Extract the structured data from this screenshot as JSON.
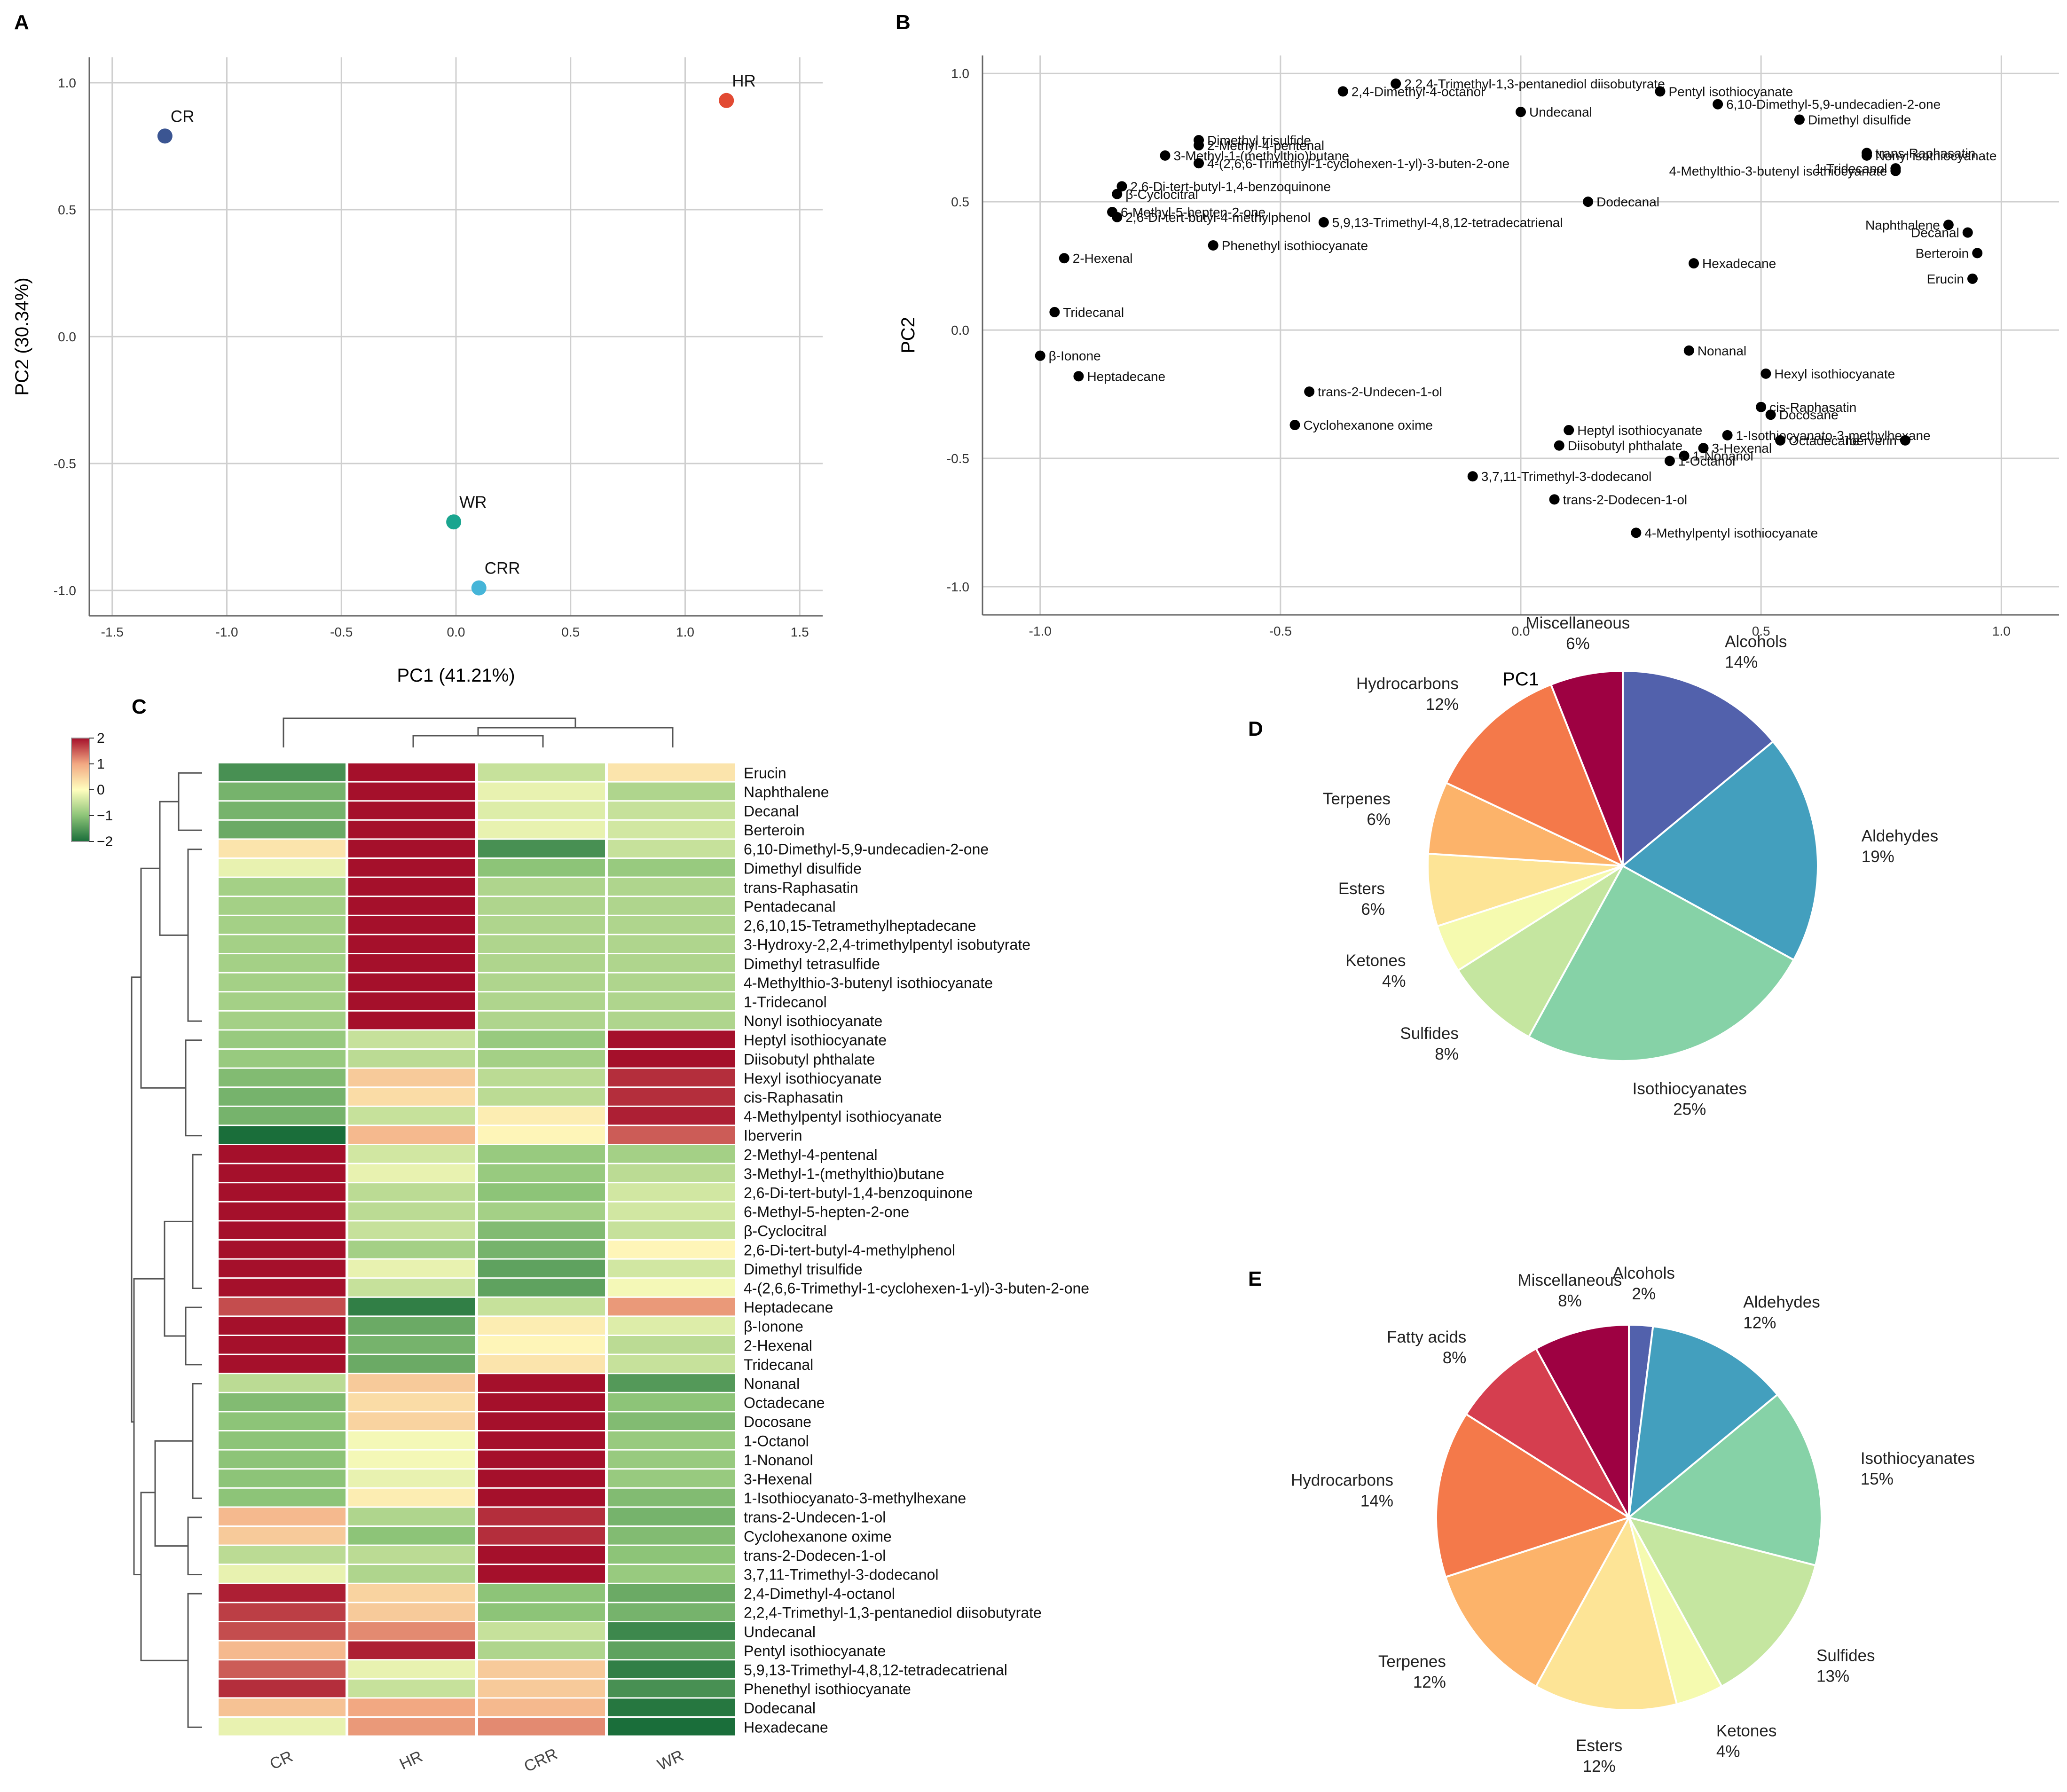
{
  "panels": {
    "A": "A",
    "B": "B",
    "C": "C",
    "D": "D",
    "E": "E"
  },
  "chart_data": [
    {
      "id": "A",
      "type": "scatter",
      "xlabel": "PC1 (41.21%)",
      "ylabel": "PC2 (30.34%)",
      "xlim": [
        -1.6,
        1.6
      ],
      "ylim": [
        -1.1,
        1.1
      ],
      "xticks": [
        -1.5,
        -1.0,
        -0.5,
        0.0,
        0.5,
        1.0,
        1.5
      ],
      "yticks": [
        -1.0,
        -0.5,
        0.0,
        0.5,
        1.0
      ],
      "points": [
        {
          "label": "CR",
          "x": -1.27,
          "y": 0.79,
          "color": "#3b5592"
        },
        {
          "label": "HR",
          "x": 1.18,
          "y": 0.93,
          "color": "#e24a33"
        },
        {
          "label": "WR",
          "x": -0.01,
          "y": -0.73,
          "color": "#1aa58f"
        },
        {
          "label": "CRR",
          "x": 0.1,
          "y": -0.99,
          "color": "#46b5d8"
        }
      ]
    },
    {
      "id": "B",
      "type": "scatter",
      "xlabel": "PC1",
      "ylabel": "PC2",
      "xlim": [
        -1.12,
        1.12
      ],
      "ylim": [
        -1.11,
        1.07
      ],
      "xticks": [
        -1.0,
        -0.5,
        0.0,
        0.5,
        1.0
      ],
      "yticks": [
        -1.0,
        -0.5,
        0.0,
        0.5,
        1.0
      ],
      "points": [
        {
          "label": "2,2,4-Trimethyl-1,3-pentanediol diisobutyrate",
          "x": -0.26,
          "y": 0.96
        },
        {
          "label": "2,4-Dimethyl-4-octanol",
          "x": -0.37,
          "y": 0.93
        },
        {
          "label": "Pentyl isothiocyanate",
          "x": 0.29,
          "y": 0.93
        },
        {
          "label": "6,10-Dimethyl-5,9-undecadien-2-one",
          "x": 0.41,
          "y": 0.88
        },
        {
          "label": "Undecanal",
          "x": 0.0,
          "y": 0.85
        },
        {
          "label": "Dimethyl disulfide",
          "x": 0.58,
          "y": 0.82
        },
        {
          "label": "Dimethyl trisulfide",
          "x": -0.67,
          "y": 0.74
        },
        {
          "label": "2-Methyl-4-pentenal",
          "x": -0.67,
          "y": 0.72
        },
        {
          "label": "3-Methyl-1-(methylthio)butane",
          "x": -0.74,
          "y": 0.68
        },
        {
          "label": "4-(2,6,6-Trimethyl-1-cyclohexen-1-yl)-3-buten-2-one",
          "x": -0.67,
          "y": 0.65
        },
        {
          "label": "trans-Raphasatin",
          "x": 0.72,
          "y": 0.69
        },
        {
          "label": "Nonyl isothiocyanate",
          "x": 0.72,
          "y": 0.68
        },
        {
          "label": "1-Tridecanol",
          "x": 0.78,
          "y": 0.63
        },
        {
          "label": "4-Methylthio-3-butenyl isothiocyanate",
          "x": 0.78,
          "y": 0.62
        },
        {
          "label": "2,6-Di-tert-butyl-1,4-benzoquinone",
          "x": -0.83,
          "y": 0.56
        },
        {
          "label": "β-Cyclocitral",
          "x": -0.84,
          "y": 0.53
        },
        {
          "label": "6-Methyl-5-hepten-2-one",
          "x": -0.85,
          "y": 0.46
        },
        {
          "label": "Dodecanal",
          "x": 0.14,
          "y": 0.5
        },
        {
          "label": "2,6-Di-tert-butyl-4-methylphenol",
          "x": -0.84,
          "y": 0.44
        },
        {
          "label": "5,9,13-Trimethyl-4,8,12-tetradecatrienal",
          "x": -0.41,
          "y": 0.42
        },
        {
          "label": "Naphthalene",
          "x": 0.89,
          "y": 0.41
        },
        {
          "label": "Decanal",
          "x": 0.93,
          "y": 0.38
        },
        {
          "label": "Phenethyl isothiocyanate",
          "x": -0.64,
          "y": 0.33
        },
        {
          "label": "Berteroin",
          "x": 0.95,
          "y": 0.3
        },
        {
          "label": "2-Hexenal",
          "x": -0.95,
          "y": 0.28
        },
        {
          "label": "Hexadecane",
          "x": 0.36,
          "y": 0.26
        },
        {
          "label": "Erucin",
          "x": 0.94,
          "y": 0.2
        },
        {
          "label": "Tridecanal",
          "x": -0.97,
          "y": 0.07
        },
        {
          "label": "β-Ionone",
          "x": -1.0,
          "y": -0.1
        },
        {
          "label": "Nonanal",
          "x": 0.35,
          "y": -0.08
        },
        {
          "label": "Hexyl isothiocyanate",
          "x": 0.51,
          "y": -0.17
        },
        {
          "label": "Heptadecane",
          "x": -0.92,
          "y": -0.18
        },
        {
          "label": "trans-2-Undecen-1-ol",
          "x": -0.44,
          "y": -0.24
        },
        {
          "label": "cis-Raphasatin",
          "x": 0.5,
          "y": -0.3
        },
        {
          "label": "Docosane",
          "x": 0.52,
          "y": -0.33
        },
        {
          "label": "Cyclohexanone oxime",
          "x": -0.47,
          "y": -0.37
        },
        {
          "label": "Heptyl isothiocyanate",
          "x": 0.1,
          "y": -0.39
        },
        {
          "label": "1-Isothiocyanato-3-methylhexane",
          "x": 0.43,
          "y": -0.41
        },
        {
          "label": "Diisobutyl phthalate",
          "x": 0.08,
          "y": -0.45
        },
        {
          "label": "Octadecane",
          "x": 0.54,
          "y": -0.43
        },
        {
          "label": "Iberverin",
          "x": 0.8,
          "y": -0.43
        },
        {
          "label": "3-Hexenal",
          "x": 0.38,
          "y": -0.46
        },
        {
          "label": "1-Nonanol",
          "x": 0.34,
          "y": -0.49
        },
        {
          "label": "1-Octanol",
          "x": 0.31,
          "y": -0.51
        },
        {
          "label": "3,7,11-Trimethyl-3-dodecanol",
          "x": -0.1,
          "y": -0.57
        },
        {
          "label": "trans-2-Dodecen-1-ol",
          "x": 0.07,
          "y": -0.66
        },
        {
          "label": "4-Methylpentyl isothiocyanate",
          "x": 0.24,
          "y": -0.79
        }
      ]
    },
    {
      "id": "C",
      "type": "heatmap",
      "columns": [
        "CR",
        "HR",
        "CRR",
        "WR"
      ],
      "colorbar": {
        "ticks": [
          "2",
          "1",
          "0",
          "−1",
          "−2"
        ],
        "min": -2,
        "max": 2
      },
      "rows": [
        {
          "name": "Erucin",
          "values": [
            -1.6,
            2.0,
            -0.5,
            0.3
          ]
        },
        {
          "name": "Naphthalene",
          "values": [
            -1.2,
            2.0,
            -0.2,
            -0.7
          ]
        },
        {
          "name": "Decanal",
          "values": [
            -1.2,
            2.0,
            -0.3,
            -0.5
          ]
        },
        {
          "name": "Berteroin",
          "values": [
            -1.3,
            2.0,
            -0.2,
            -0.4
          ]
        },
        {
          "name": "6,10-Dimethyl-5,9-undecadien-2-one",
          "values": [
            0.3,
            2.0,
            -1.6,
            -0.5
          ]
        },
        {
          "name": "Dimethyl disulfide",
          "values": [
            -0.2,
            2.0,
            -1.0,
            -0.9
          ]
        },
        {
          "name": "trans-Raphasatin",
          "values": [
            -0.8,
            2.0,
            -0.7,
            -0.7
          ]
        },
        {
          "name": "Pentadecanal",
          "values": [
            -0.8,
            2.0,
            -0.7,
            -0.7
          ]
        },
        {
          "name": "2,6,10,15-Tetramethylheptadecane",
          "values": [
            -0.8,
            2.0,
            -0.7,
            -0.7
          ]
        },
        {
          "name": "3-Hydroxy-2,2,4-trimethylpentyl isobutyrate",
          "values": [
            -0.8,
            2.0,
            -0.7,
            -0.7
          ]
        },
        {
          "name": "Dimethyl tetrasulfide",
          "values": [
            -0.8,
            2.0,
            -0.7,
            -0.7
          ]
        },
        {
          "name": "4-Methylthio-3-butenyl isothiocyanate",
          "values": [
            -0.8,
            2.0,
            -0.7,
            -0.7
          ]
        },
        {
          "name": "1-Tridecanol",
          "values": [
            -0.8,
            2.0,
            -0.7,
            -0.7
          ]
        },
        {
          "name": "Nonyl isothiocyanate",
          "values": [
            -0.8,
            2.0,
            -0.7,
            -0.7
          ]
        },
        {
          "name": "Heptyl isothiocyanate",
          "values": [
            -0.9,
            -0.5,
            -0.9,
            2.0
          ]
        },
        {
          "name": "Diisobutyl phthalate",
          "values": [
            -0.9,
            -0.6,
            -0.8,
            2.0
          ]
        },
        {
          "name": "Hexyl isothiocyanate",
          "values": [
            -1.1,
            0.6,
            -0.6,
            1.8
          ]
        },
        {
          "name": "cis-Raphasatin",
          "values": [
            -1.2,
            0.4,
            -0.6,
            1.8
          ]
        },
        {
          "name": "4-Methylpentyl isothiocyanate",
          "values": [
            -1.2,
            -0.5,
            0.2,
            1.9
          ]
        },
        {
          "name": "Iberverin",
          "values": [
            -2.0,
            0.8,
            0.1,
            1.5
          ]
        },
        {
          "name": "2-Methyl-4-pentenal",
          "values": [
            2.0,
            -0.4,
            -0.9,
            -0.8
          ]
        },
        {
          "name": "3-Methyl-1-(methylthio)butane",
          "values": [
            2.0,
            -0.2,
            -0.9,
            -0.6
          ]
        },
        {
          "name": "2,6-Di-tert-butyl-1,4-benzoquinone",
          "values": [
            2.0,
            -0.6,
            -1.0,
            -0.4
          ]
        },
        {
          "name": "6-Methyl-5-hepten-2-one",
          "values": [
            2.0,
            -0.6,
            -0.8,
            -0.4
          ]
        },
        {
          "name": "β-Cyclocitral",
          "values": [
            2.0,
            -0.5,
            -1.1,
            -0.5
          ]
        },
        {
          "name": "2,6-Di-tert-butyl-4-methylphenol",
          "values": [
            2.0,
            -0.8,
            -1.2,
            0.1
          ]
        },
        {
          "name": "Dimethyl trisulfide",
          "values": [
            2.0,
            -0.2,
            -1.4,
            -0.4
          ]
        },
        {
          "name": "4-(2,6,6-Trimethyl-1-cyclohexen-1-yl)-3-buten-2-one",
          "values": [
            2.0,
            -0.5,
            -1.4,
            -0.1
          ]
        },
        {
          "name": "Heptadecane",
          "values": [
            1.6,
            -1.8,
            -0.5,
            1.1
          ]
        },
        {
          "name": "β-Ionone",
          "values": [
            2.0,
            -1.3,
            0.2,
            -0.3
          ]
        },
        {
          "name": "2-Hexenal",
          "values": [
            2.0,
            -1.2,
            0.1,
            -0.6
          ]
        },
        {
          "name": "Tridecanal",
          "values": [
            2.0,
            -1.3,
            0.3,
            -0.5
          ]
        },
        {
          "name": "Nonanal",
          "values": [
            -0.6,
            0.6,
            2.0,
            -1.5
          ]
        },
        {
          "name": "Octadecane",
          "values": [
            -1.1,
            0.4,
            2.0,
            -1.0
          ]
        },
        {
          "name": "Docosane",
          "values": [
            -1.0,
            0.5,
            2.0,
            -1.1
          ]
        },
        {
          "name": "1-Octanol",
          "values": [
            -1.0,
            -0.1,
            2.0,
            -0.9
          ]
        },
        {
          "name": "1-Nonanol",
          "values": [
            -1.0,
            -0.1,
            2.0,
            -0.9
          ]
        },
        {
          "name": "3-Hexenal",
          "values": [
            -1.0,
            -0.2,
            2.0,
            -0.9
          ]
        },
        {
          "name": "1-Isothiocyanato-3-methylhexane",
          "values": [
            -1.0,
            0.2,
            2.0,
            -1.1
          ]
        },
        {
          "name": "trans-2-Undecen-1-ol",
          "values": [
            0.8,
            -0.7,
            1.8,
            -1.2
          ]
        },
        {
          "name": "Cyclohexanone oxime",
          "values": [
            0.6,
            -1.0,
            1.8,
            -1.1
          ]
        },
        {
          "name": "trans-2-Dodecen-1-ol",
          "values": [
            -0.6,
            -0.6,
            2.0,
            -1.0
          ]
        },
        {
          "name": "3,7,11-Trimethyl-3-dodecanol",
          "values": [
            -0.2,
            -0.7,
            2.0,
            -0.9
          ]
        },
        {
          "name": "2,4-Dimethyl-4-octanol",
          "values": [
            1.9,
            0.5,
            -1.0,
            -1.3
          ]
        },
        {
          "name": "2,2,4-Trimethyl-1,3-pentanediol diisobutyrate",
          "values": [
            1.7,
            0.6,
            -1.0,
            -1.2
          ]
        },
        {
          "name": "Undecanal",
          "values": [
            1.6,
            1.2,
            -0.5,
            -1.7
          ]
        },
        {
          "name": "Pentyl isothiocyanate",
          "values": [
            0.8,
            1.9,
            -0.7,
            -1.4
          ]
        },
        {
          "name": "5,9,13-Trimethyl-4,8,12-tetradecatrienal",
          "values": [
            1.5,
            -0.2,
            0.6,
            -1.8
          ]
        },
        {
          "name": "Phenethyl isothiocyanate",
          "values": [
            1.8,
            -0.5,
            0.6,
            -1.6
          ]
        },
        {
          "name": "Dodecanal",
          "values": [
            0.7,
            1.0,
            0.8,
            -1.9
          ]
        },
        {
          "name": "Hexadecane",
          "values": [
            -0.2,
            1.1,
            1.2,
            -2.0
          ]
        }
      ]
    },
    {
      "id": "D",
      "type": "pie",
      "slices": [
        {
          "label": "Alcohols",
          "pct": "14%",
          "value": 14,
          "color": "#5261ac"
        },
        {
          "label": "Aldehydes",
          "pct": "19%",
          "value": 19,
          "color": "#439fbe"
        },
        {
          "label": "Isothiocyanates",
          "pct": "25%",
          "value": 25,
          "color": "#86d2a7"
        },
        {
          "label": "Sulfides",
          "pct": "8%",
          "value": 8,
          "color": "#c5e6a0"
        },
        {
          "label": "Ketones",
          "pct": "4%",
          "value": 4,
          "color": "#f5faaf"
        },
        {
          "label": "Esters",
          "pct": "6%",
          "value": 6,
          "color": "#fde496"
        },
        {
          "label": "Terpenes",
          "pct": "6%",
          "value": 6,
          "color": "#fcb36a"
        },
        {
          "label": "Hydrocarbons",
          "pct": "12%",
          "value": 12,
          "color": "#f4794a"
        },
        {
          "label": "Miscellaneous",
          "pct": "6%",
          "value": 6,
          "color": "#9e0142"
        }
      ]
    },
    {
      "id": "E",
      "type": "pie",
      "slices": [
        {
          "label": "Alcohols",
          "pct": "2%",
          "value": 2,
          "color": "#5261ac"
        },
        {
          "label": "Aldehydes",
          "pct": "12%",
          "value": 12,
          "color": "#439fbe"
        },
        {
          "label": "Isothiocyanates",
          "pct": "15%",
          "value": 15,
          "color": "#86d2a7"
        },
        {
          "label": "Sulfides",
          "pct": "13%",
          "value": 13,
          "color": "#c5e6a0"
        },
        {
          "label": "Ketones",
          "pct": "4%",
          "value": 4,
          "color": "#f5faaf"
        },
        {
          "label": "Esters",
          "pct": "12%",
          "value": 12,
          "color": "#fde496"
        },
        {
          "label": "Terpenes",
          "pct": "12%",
          "value": 12,
          "color": "#fcb36a"
        },
        {
          "label": "Hydrocarbons",
          "pct": "14%",
          "value": 14,
          "color": "#f4794a"
        },
        {
          "label": "Fatty acids",
          "pct": "8%",
          "value": 8,
          "color": "#d53e4f"
        },
        {
          "label": "Miscellaneous",
          "pct": "8%",
          "value": 8,
          "color": "#9e0142"
        }
      ]
    }
  ]
}
